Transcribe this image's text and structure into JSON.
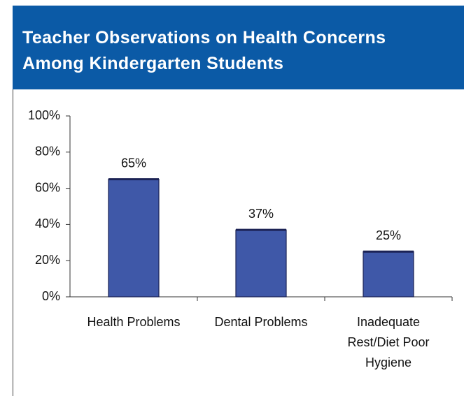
{
  "chart_data": {
    "type": "bar",
    "title": "Teacher Observations on Health Concerns Among Kindergarten Students",
    "categories": [
      "Health Problems",
      "Dental Problems",
      "Inadequate Rest/Diet Poor Hygiene"
    ],
    "values": [
      65,
      37,
      25
    ],
    "value_labels": [
      "65%",
      "37%",
      "25%"
    ],
    "color": "#3f58a8",
    "ylim": [
      0,
      100
    ],
    "yticks": [
      {
        "value": 0,
        "label": "0%"
      },
      {
        "value": 20,
        "label": "20%"
      },
      {
        "value": 40,
        "label": "40%"
      },
      {
        "value": 60,
        "label": "60%"
      },
      {
        "value": 80,
        "label": "80%"
      },
      {
        "value": 100,
        "label": "100%"
      }
    ],
    "grid": false
  }
}
